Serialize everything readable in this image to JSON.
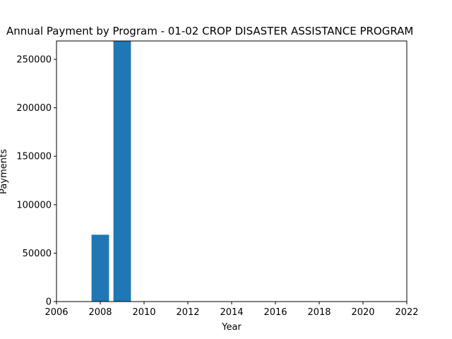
{
  "chart_data": {
    "type": "bar",
    "title": "Annual Payment by Program - 01-02 CROP DISASTER ASSISTANCE PROGRAM",
    "xlabel": "Year",
    "ylabel": "Payments",
    "x": [
      2008,
      2009
    ],
    "values": [
      69000,
      269000
    ],
    "xlim": [
      2006,
      2022
    ],
    "ylim": [
      0,
      269000
    ],
    "xticks": [
      "2006",
      "2008",
      "2010",
      "2012",
      "2014",
      "2016",
      "2018",
      "2020",
      "2022"
    ],
    "yticks": [
      "0",
      "50000",
      "100000",
      "150000",
      "200000",
      "250000"
    ],
    "bar_color": "#1f77b4",
    "grid": false
  }
}
